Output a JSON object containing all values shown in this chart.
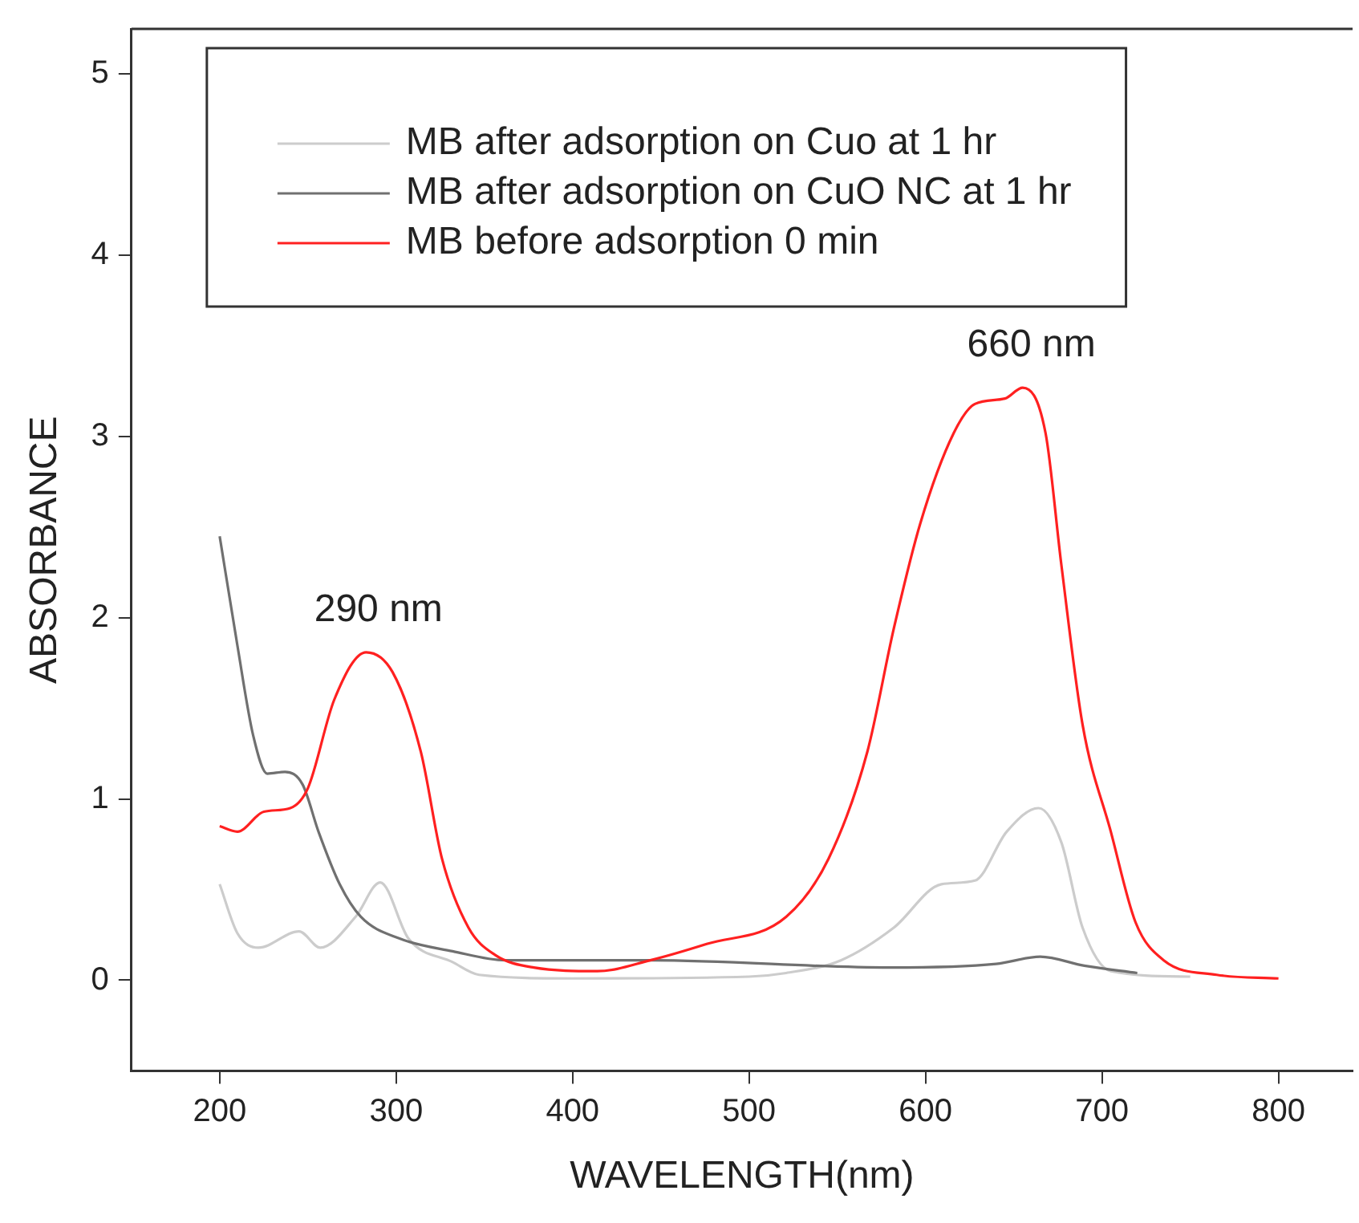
{
  "chart_data": {
    "type": "line",
    "xlabel": "WAVELENGTH(nm)",
    "ylabel": "ABSORBANCE",
    "xlim": [
      150,
      842
    ],
    "ylim": [
      -0.5,
      5.25
    ],
    "xticks": [
      200,
      300,
      400,
      500,
      600,
      700,
      800
    ],
    "yticks": [
      0,
      1,
      2,
      3,
      4,
      5
    ],
    "grid": false,
    "legend": "top",
    "marker": "none",
    "line_style": "solid",
    "annotations": [
      {
        "text": "290 nm",
        "x": 290,
        "y": 1.81
      },
      {
        "text": "660 nm",
        "x": 660,
        "y": 3.27
      }
    ],
    "series": [
      {
        "name": "MB after adsorption on Cuo at 1 hr",
        "color": "#cccccc",
        "x": [
          200,
          210,
          222,
          245,
          257,
          277,
          291,
          307,
          332,
          347,
          400,
          500,
          521,
          552,
          582,
          609,
          628,
          646,
          664,
          677,
          689,
          705,
          750
        ],
        "values": [
          0.53,
          0.26,
          0.18,
          0.27,
          0.18,
          0.35,
          0.54,
          0.23,
          0.1,
          0.03,
          0.01,
          0.02,
          0.04,
          0.11,
          0.29,
          0.53,
          0.55,
          0.82,
          0.95,
          0.76,
          0.29,
          0.05,
          0.02
        ]
      },
      {
        "name": "MB after adsorption on CuO NC at 1 hr",
        "color": "#707070",
        "x": [
          200,
          210,
          219,
          227,
          237,
          247,
          256,
          268,
          280,
          302,
          332,
          362,
          445,
          580,
          640,
          665,
          690,
          720
        ],
        "values": [
          2.45,
          1.85,
          1.35,
          1.14,
          1.15,
          1.08,
          0.82,
          0.53,
          0.35,
          0.23,
          0.16,
          0.11,
          0.11,
          0.07,
          0.09,
          0.13,
          0.08,
          0.04
        ]
      },
      {
        "name": "MB before adsorption 0 min",
        "color": "#ff2020",
        "x": [
          200,
          210,
          225,
          240,
          250,
          265,
          283,
          298,
          314,
          326,
          341,
          356,
          378,
          414,
          444,
          476,
          521,
          545,
          567,
          582,
          597,
          616,
          628,
          645,
          655,
          668,
          677,
          689,
          705,
          719,
          735,
          765,
          800
        ],
        "values": [
          0.85,
          0.82,
          0.93,
          0.95,
          1.06,
          1.55,
          1.81,
          1.7,
          1.26,
          0.67,
          0.29,
          0.14,
          0.07,
          0.05,
          0.11,
          0.2,
          0.35,
          0.67,
          1.26,
          1.94,
          2.52,
          3.02,
          3.18,
          3.21,
          3.27,
          3.02,
          2.29,
          1.41,
          0.82,
          0.32,
          0.11,
          0.03,
          0.01
        ]
      }
    ]
  }
}
